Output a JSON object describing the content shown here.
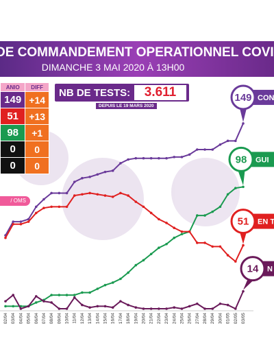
{
  "chart_data": {
    "type": "line",
    "title": "DE COMMANDEMENT OPERATIONNEL COVI",
    "subtitle": "DIMANCHE 3 MAI 2020 À 13H00",
    "categories": [
      "02/04",
      "03/04",
      "04/04",
      "05/04",
      "06/04",
      "07/04",
      "08/04",
      "09/04",
      "10/04",
      "11/04",
      "12/04",
      "13/04",
      "14/04",
      "15/04",
      "16/04",
      "17/04",
      "18/04",
      "19/04",
      "20/04",
      "21/04",
      "22/04",
      "23/04",
      "24/04",
      "25/04",
      "26/04",
      "27/04",
      "28/04",
      "29/04",
      "30/04",
      "01/05",
      "02/05",
      "03/05"
    ],
    "ylim": [
      0,
      160
    ],
    "series": [
      {
        "name": "CON",
        "color": "#6a3a9a",
        "values": [
          59,
          70,
          70,
          72,
          82,
          88,
          93,
          93,
          93,
          102,
          105,
          106,
          108,
          110,
          111,
          117,
          120,
          121,
          121,
          121,
          121,
          121,
          122,
          122,
          124,
          128,
          128,
          128,
          132,
          135,
          135,
          149
        ]
      },
      {
        "name": "GUI",
        "color": "#1a9a50",
        "values": [
          2,
          2,
          2,
          2,
          5,
          7,
          11,
          11,
          11,
          11,
          13,
          13,
          16,
          19,
          21,
          24,
          29,
          35,
          39,
          44,
          49,
          52,
          57,
          60,
          62,
          75,
          75,
          78,
          82,
          92,
          97,
          98
        ]
      },
      {
        "name": "EN T",
        "color": "#e02020",
        "values": [
          57,
          68,
          68,
          70,
          77,
          81,
          82,
          82,
          82,
          91,
          92,
          93,
          92,
          91,
          90,
          93,
          91,
          86,
          82,
          77,
          72,
          69,
          65,
          62,
          62,
          53,
          53,
          50,
          50,
          43,
          38,
          51
        ]
      },
      {
        "name": "N",
        "color": "#6a1a5a",
        "values": [
          6,
          11,
          0,
          2,
          10,
          6,
          5,
          0,
          0,
          9,
          3,
          1,
          2,
          2,
          1,
          6,
          3,
          1,
          0,
          0,
          0,
          0,
          1,
          0,
          2,
          4,
          0,
          0,
          4,
          3,
          0,
          14
        ]
      }
    ]
  },
  "panel": {
    "headers": [
      "ANIO",
      "DIFF"
    ],
    "rows": [
      [
        "149",
        "+14"
      ],
      [
        "51",
        "+13"
      ],
      [
        "98",
        "+1"
      ],
      [
        "0",
        "0"
      ],
      [
        "0",
        "0"
      ]
    ],
    "button": "/ OMS"
  },
  "tests": {
    "label": "NB DE TESTS:",
    "value": "3.611",
    "since": "DEPUIS LE 19 MARS 2020"
  }
}
